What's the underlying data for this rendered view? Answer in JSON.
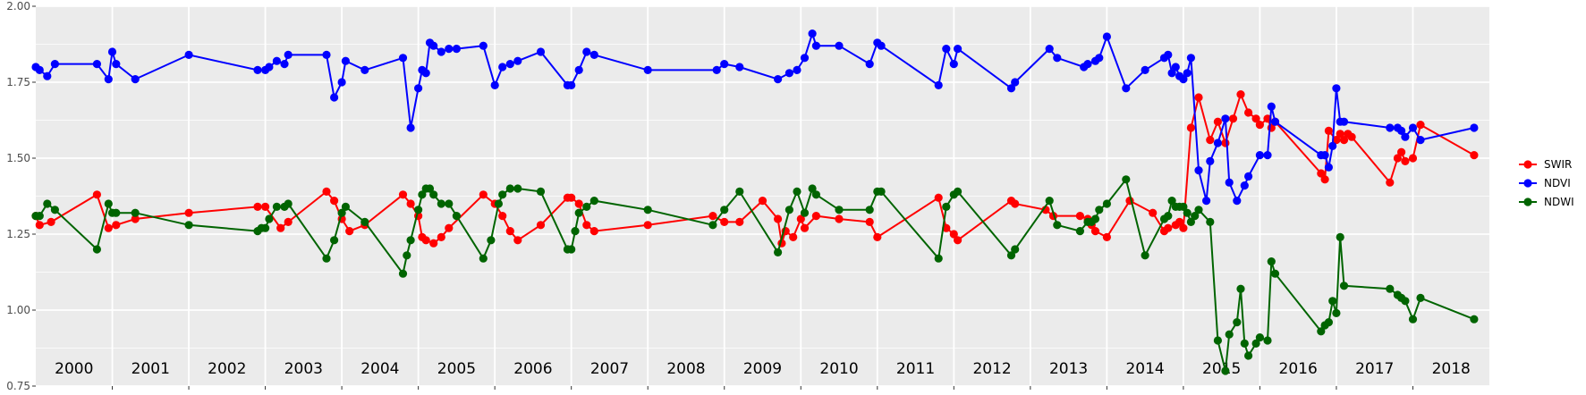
{
  "chart_data": {
    "type": "line",
    "title": "",
    "xlabel": "",
    "ylabel": "",
    "ylim": [
      0.75,
      2.0
    ],
    "yticks": [
      "0.75",
      "1.00",
      "1.25",
      "1.50",
      "1.75",
      "2.00"
    ],
    "year_labels": [
      "2000",
      "2001",
      "2002",
      "2003",
      "2004",
      "2005",
      "2006",
      "2007",
      "2008",
      "2009",
      "2010",
      "2011",
      "2012",
      "2013",
      "2014",
      "2015",
      "2016",
      "2017",
      "2018"
    ],
    "xlim": [
      2000.0,
      2019.0
    ],
    "grid": true,
    "legend_position": "right",
    "series": [
      {
        "name": "SWIR",
        "color": "#ff0000",
        "x": [
          2000.0,
          2000.05,
          2000.2,
          2000.8,
          2000.95,
          2001.05,
          2001.3,
          2002.0,
          2002.9,
          2003.0,
          2003.2,
          2003.3,
          2003.8,
          2003.9,
          2004.0,
          2004.1,
          2004.3,
          2004.8,
          2004.9,
          2005.0,
          2005.05,
          2005.1,
          2005.2,
          2005.3,
          2005.4,
          2005.85,
          2006.0,
          2006.1,
          2006.2,
          2006.3,
          2006.6,
          2006.95,
          2007.0,
          2007.1,
          2007.2,
          2007.3,
          2008.0,
          2008.85,
          2009.0,
          2009.2,
          2009.5,
          2009.7,
          2009.75,
          2009.8,
          2009.9,
          2010.0,
          2010.05,
          2010.2,
          2010.5,
          2010.9,
          2011.0,
          2011.8,
          2011.9,
          2012.0,
          2012.05,
          2012.75,
          2012.8,
          2013.2,
          2013.3,
          2013.65,
          2013.75,
          2013.8,
          2013.85,
          2014.0,
          2014.3,
          2014.6,
          2014.75,
          2014.8,
          2014.9,
          2014.95,
          2015.0,
          2015.1,
          2015.2,
          2015.35,
          2015.45,
          2015.55,
          2015.65,
          2015.75,
          2015.85,
          2015.95,
          2016.0,
          2016.1,
          2016.15,
          2016.2,
          2016.8,
          2016.85,
          2016.9,
          2017.0,
          2017.05,
          2017.1,
          2017.15,
          2017.2,
          2017.7,
          2017.8,
          2017.85,
          2017.9,
          2018.0,
          2018.1,
          2018.8
        ],
        "values": [
          1.31,
          1.28,
          1.29,
          1.38,
          1.27,
          1.28,
          1.3,
          1.32,
          1.34,
          1.34,
          1.27,
          1.29,
          1.39,
          1.36,
          1.3,
          1.26,
          1.28,
          1.38,
          1.35,
          1.31,
          1.24,
          1.23,
          1.22,
          1.24,
          1.27,
          1.38,
          1.35,
          1.31,
          1.26,
          1.23,
          1.28,
          1.37,
          1.37,
          1.35,
          1.28,
          1.26,
          1.28,
          1.31,
          1.29,
          1.29,
          1.36,
          1.3,
          1.22,
          1.26,
          1.24,
          1.3,
          1.27,
          1.31,
          1.3,
          1.29,
          1.24,
          1.37,
          1.27,
          1.25,
          1.23,
          1.36,
          1.35,
          1.33,
          1.31,
          1.31,
          1.3,
          1.28,
          1.26,
          1.24,
          1.36,
          1.32,
          1.26,
          1.27,
          1.28,
          1.29,
          1.27,
          1.6,
          1.7,
          1.56,
          1.62,
          1.55,
          1.63,
          1.71,
          1.65,
          1.63,
          1.61,
          1.63,
          1.6,
          1.62,
          1.45,
          1.43,
          1.59,
          1.56,
          1.58,
          1.56,
          1.58,
          1.57,
          1.42,
          1.5,
          1.52,
          1.49,
          1.5,
          1.61,
          1.51
        ]
      },
      {
        "name": "NDVI",
        "color": "#0000ff",
        "x": [
          2000.0,
          2000.05,
          2000.15,
          2000.25,
          2000.8,
          2000.95,
          2001.0,
          2001.05,
          2001.3,
          2002.0,
          2002.9,
          2003.0,
          2003.05,
          2003.15,
          2003.25,
          2003.3,
          2003.8,
          2003.9,
          2004.0,
          2004.05,
          2004.3,
          2004.8,
          2004.9,
          2005.0,
          2005.05,
          2005.1,
          2005.15,
          2005.2,
          2005.3,
          2005.4,
          2005.5,
          2005.85,
          2006.0,
          2006.1,
          2006.2,
          2006.3,
          2006.6,
          2006.95,
          2007.0,
          2007.1,
          2007.2,
          2007.3,
          2008.0,
          2008.9,
          2009.0,
          2009.2,
          2009.7,
          2009.85,
          2009.95,
          2010.05,
          2010.15,
          2010.2,
          2010.5,
          2010.9,
          2011.0,
          2011.05,
          2011.8,
          2011.9,
          2012.0,
          2012.05,
          2012.75,
          2012.8,
          2013.25,
          2013.35,
          2013.7,
          2013.75,
          2013.85,
          2013.9,
          2014.0,
          2014.25,
          2014.5,
          2014.75,
          2014.8,
          2014.85,
          2014.9,
          2014.95,
          2015.0,
          2015.05,
          2015.1,
          2015.2,
          2015.3,
          2015.35,
          2015.45,
          2015.55,
          2015.6,
          2015.7,
          2015.8,
          2015.85,
          2016.0,
          2016.1,
          2016.15,
          2016.2,
          2016.8,
          2016.85,
          2016.9,
          2016.95,
          2017.0,
          2017.05,
          2017.1,
          2017.7,
          2017.8,
          2017.85,
          2017.9,
          2018.0,
          2018.1,
          2018.8
        ],
        "values": [
          1.8,
          1.79,
          1.77,
          1.81,
          1.81,
          1.76,
          1.85,
          1.81,
          1.76,
          1.84,
          1.79,
          1.79,
          1.8,
          1.82,
          1.81,
          1.84,
          1.84,
          1.7,
          1.75,
          1.82,
          1.79,
          1.83,
          1.6,
          1.73,
          1.79,
          1.78,
          1.88,
          1.87,
          1.85,
          1.86,
          1.86,
          1.87,
          1.74,
          1.8,
          1.81,
          1.82,
          1.85,
          1.74,
          1.74,
          1.79,
          1.85,
          1.84,
          1.79,
          1.79,
          1.81,
          1.8,
          1.76,
          1.78,
          1.79,
          1.83,
          1.91,
          1.87,
          1.87,
          1.81,
          1.88,
          1.87,
          1.74,
          1.86,
          1.81,
          1.86,
          1.73,
          1.75,
          1.86,
          1.83,
          1.8,
          1.81,
          1.82,
          1.83,
          1.9,
          1.73,
          1.79,
          1.83,
          1.84,
          1.78,
          1.8,
          1.77,
          1.76,
          1.78,
          1.83,
          1.46,
          1.36,
          1.49,
          1.55,
          1.63,
          1.42,
          1.36,
          1.41,
          1.44,
          1.51,
          1.51,
          1.67,
          1.62,
          1.51,
          1.51,
          1.47,
          1.54,
          1.73,
          1.62,
          1.62,
          1.6,
          1.6,
          1.59,
          1.57,
          1.6,
          1.56,
          1.6
        ]
      },
      {
        "name": "NDWI",
        "color": "#006400",
        "x": [
          2000.0,
          2000.05,
          2000.15,
          2000.25,
          2000.8,
          2000.95,
          2001.0,
          2001.05,
          2001.3,
          2002.0,
          2002.9,
          2002.95,
          2003.0,
          2003.05,
          2003.15,
          2003.25,
          2003.3,
          2003.8,
          2003.9,
          2004.0,
          2004.05,
          2004.3,
          2004.8,
          2004.85,
          2004.9,
          2005.0,
          2005.05,
          2005.1,
          2005.15,
          2005.2,
          2005.3,
          2005.4,
          2005.5,
          2005.85,
          2005.95,
          2006.05,
          2006.1,
          2006.2,
          2006.3,
          2006.6,
          2006.95,
          2007.0,
          2007.05,
          2007.1,
          2007.2,
          2007.3,
          2008.0,
          2008.85,
          2009.0,
          2009.2,
          2009.7,
          2009.85,
          2009.95,
          2010.05,
          2010.15,
          2010.2,
          2010.5,
          2010.9,
          2011.0,
          2011.05,
          2011.8,
          2011.9,
          2012.0,
          2012.05,
          2012.75,
          2012.8,
          2013.25,
          2013.35,
          2013.65,
          2013.75,
          2013.8,
          2013.85,
          2013.9,
          2014.0,
          2014.25,
          2014.5,
          2014.75,
          2014.8,
          2014.85,
          2014.9,
          2014.95,
          2015.0,
          2015.05,
          2015.1,
          2015.15,
          2015.2,
          2015.35,
          2015.45,
          2015.55,
          2015.6,
          2015.7,
          2015.75,
          2015.8,
          2015.85,
          2015.95,
          2016.0,
          2016.1,
          2016.15,
          2016.2,
          2016.8,
          2016.85,
          2016.9,
          2016.95,
          2017.0,
          2017.05,
          2017.1,
          2017.7,
          2017.8,
          2017.85,
          2017.9,
          2018.0,
          2018.1,
          2018.8
        ],
        "values": [
          1.31,
          1.31,
          1.35,
          1.33,
          1.2,
          1.35,
          1.32,
          1.32,
          1.32,
          1.28,
          1.26,
          1.27,
          1.27,
          1.3,
          1.34,
          1.34,
          1.35,
          1.17,
          1.23,
          1.32,
          1.34,
          1.29,
          1.12,
          1.18,
          1.23,
          1.33,
          1.38,
          1.4,
          1.4,
          1.38,
          1.35,
          1.35,
          1.31,
          1.17,
          1.23,
          1.35,
          1.38,
          1.4,
          1.4,
          1.39,
          1.2,
          1.2,
          1.26,
          1.32,
          1.34,
          1.36,
          1.33,
          1.28,
          1.33,
          1.39,
          1.19,
          1.33,
          1.39,
          1.32,
          1.4,
          1.38,
          1.33,
          1.33,
          1.39,
          1.39,
          1.17,
          1.34,
          1.38,
          1.39,
          1.18,
          1.2,
          1.36,
          1.28,
          1.26,
          1.29,
          1.29,
          1.3,
          1.33,
          1.35,
          1.43,
          1.18,
          1.3,
          1.31,
          1.36,
          1.34,
          1.34,
          1.34,
          1.32,
          1.29,
          1.31,
          1.33,
          1.29,
          0.9,
          0.8,
          0.92,
          0.96,
          1.07,
          0.89,
          0.85,
          0.89,
          0.91,
          0.9,
          1.16,
          1.12,
          0.93,
          0.95,
          0.96,
          1.03,
          0.99,
          1.24,
          1.08,
          1.07,
          1.05,
          1.04,
          1.03,
          0.97,
          1.04,
          0.97
        ]
      }
    ]
  }
}
